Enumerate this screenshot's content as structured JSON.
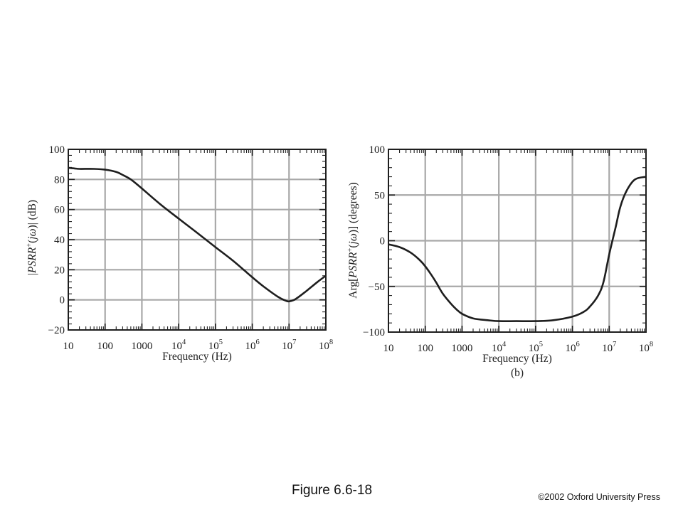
{
  "figure": {
    "caption": "Figure 6.6-18",
    "copyright": "©2002 Oxford University Press"
  },
  "chart_data": [
    {
      "type": "line",
      "title": "",
      "xlabel": "Frequency (Hz)",
      "ylabel_parts": [
        "|",
        "PSRR",
        "+",
        "(",
        "jω",
        ")|  (dB)"
      ],
      "x_scale": "log",
      "xlim": [
        10,
        100000000
      ],
      "ylim": [
        -20,
        100
      ],
      "grid": true,
      "x_ticks": [
        {
          "value": 10,
          "base": "10",
          "exp": ""
        },
        {
          "value": 100,
          "base": "100",
          "exp": ""
        },
        {
          "value": 1000,
          "base": "1000",
          "exp": ""
        },
        {
          "value": 10000,
          "base": "10",
          "exp": "4"
        },
        {
          "value": 100000,
          "base": "10",
          "exp": "5"
        },
        {
          "value": 1000000,
          "base": "10",
          "exp": "6"
        },
        {
          "value": 10000000,
          "base": "10",
          "exp": "7"
        },
        {
          "value": 100000000,
          "base": "10",
          "exp": "8"
        }
      ],
      "y_ticks": [
        {
          "value": 100,
          "label": "100"
        },
        {
          "value": 80,
          "label": "80"
        },
        {
          "value": 60,
          "label": "60"
        },
        {
          "value": 40,
          "label": "40"
        },
        {
          "value": 20,
          "label": "20"
        },
        {
          "value": 0,
          "label": "0"
        },
        {
          "value": -20,
          "label": "−20"
        }
      ],
      "series": [
        {
          "x": [
            10,
            15,
            20,
            50,
            100,
            200,
            300,
            500,
            1000,
            3000,
            10000,
            30000,
            100000,
            300000,
            1000000,
            2000000,
            5000000,
            8000000,
            10000000,
            15000000,
            30000000,
            60000000,
            100000000
          ],
          "y": [
            87.7,
            87.3,
            87.0,
            87.0,
            86.5,
            85.0,
            83.0,
            80.0,
            74.0,
            64.0,
            54.0,
            45.0,
            35.0,
            26.0,
            15.0,
            9.0,
            2.0,
            -0.5,
            -1.0,
            0.5,
            6.0,
            12.0,
            16.0
          ]
        }
      ]
    },
    {
      "type": "line",
      "title": "",
      "xlabel": "Frequency (Hz)",
      "sublabel": "(b)",
      "ylabel_parts": [
        "Arg[",
        "PSRR",
        "+",
        "(",
        "jω",
        ")] (degrees)"
      ],
      "x_scale": "log",
      "xlim": [
        10,
        100000000
      ],
      "ylim": [
        -100,
        100
      ],
      "grid": true,
      "x_ticks": [
        {
          "value": 10,
          "base": "10",
          "exp": ""
        },
        {
          "value": 100,
          "base": "100",
          "exp": ""
        },
        {
          "value": 1000,
          "base": "1000",
          "exp": ""
        },
        {
          "value": 10000,
          "base": "10",
          "exp": "4"
        },
        {
          "value": 100000,
          "base": "10",
          "exp": "5"
        },
        {
          "value": 1000000,
          "base": "10",
          "exp": "6"
        },
        {
          "value": 10000000,
          "base": "10",
          "exp": "7"
        },
        {
          "value": 100000000,
          "base": "10",
          "exp": "8"
        }
      ],
      "y_ticks": [
        {
          "value": 100,
          "label": "100"
        },
        {
          "value": 50,
          "label": "50"
        },
        {
          "value": 0,
          "label": "0"
        },
        {
          "value": -50,
          "label": "−50"
        },
        {
          "value": -100,
          "label": "−100"
        }
      ],
      "series": [
        {
          "x": [
            10,
            20,
            40,
            70,
            100,
            150,
            200,
            300,
            500,
            700,
            1000,
            2000,
            5000,
            10000,
            30000,
            100000,
            300000,
            1000000,
            2000000,
            3000000,
            5000000,
            7000000,
            10000000,
            15000000,
            20000000,
            30000000,
            50000000,
            100000000
          ],
          "y": [
            -4,
            -7,
            -13,
            -21,
            -28,
            -38,
            -46,
            -58,
            -69,
            -75,
            -80,
            -85,
            -87,
            -88,
            -88,
            -88,
            -87,
            -83,
            -78,
            -72,
            -60,
            -45,
            -15,
            15,
            37,
            55,
            67,
            70
          ]
        }
      ]
    }
  ]
}
